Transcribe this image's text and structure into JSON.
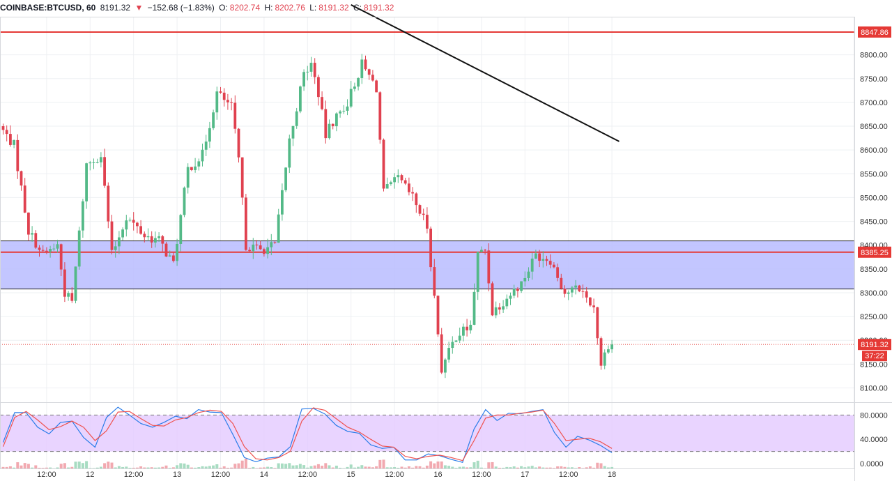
{
  "header": {
    "symbol": "COINBASE:BTCUSD, 60",
    "last": "8191.32",
    "change_arrow": "▼",
    "change": "−152.68 (−1.83%)",
    "open_label": "O:",
    "open": "8202.74",
    "high_label": "H:",
    "high": "8202.76",
    "low_label": "L:",
    "low": "8191.32",
    "close_label": "C:",
    "close": "8191.32"
  },
  "colors": {
    "up": "#53b987",
    "down": "#e0414f",
    "level_line": "#e53935",
    "zone_fill": "#b9bcff",
    "stoch_band": "#e4c9ff",
    "k_line": "#2b7de9",
    "d_line": "#ef5350",
    "grid": "#eef0f3"
  },
  "chart_data": [
    {
      "type": "candlestick",
      "pane": "price",
      "y_range": [
        8070,
        8880
      ],
      "y_ticks": [
        "8100.00",
        "8150.00",
        "8200.00",
        "8250.00",
        "8300.00",
        "8350.00",
        "8400.00",
        "8450.00",
        "8500.00",
        "8550.00",
        "8600.00",
        "8650.00",
        "8700.00",
        "8750.00",
        "8800.00"
      ],
      "y_tick_values": [
        8100,
        8150,
        8200,
        8250,
        8300,
        8350,
        8400,
        8450,
        8500,
        8550,
        8600,
        8650,
        8700,
        8750,
        8800
      ],
      "x_ticks": [
        "12:00",
        "12",
        "12:00",
        "13",
        "12:00",
        "14",
        "12:00",
        "15",
        "12:00",
        "16",
        "12:00",
        "17",
        "12:00",
        "18"
      ],
      "bars_per_day": 24,
      "first_tick_bar": 12,
      "bar_count": 188,
      "anchors": [
        [
          0,
          8650
        ],
        [
          4,
          8610
        ],
        [
          8,
          8430
        ],
        [
          12,
          8380
        ],
        [
          16,
          8400
        ],
        [
          18,
          8300
        ],
        [
          20,
          8280
        ],
        [
          24,
          8570
        ],
        [
          28,
          8590
        ],
        [
          31,
          8380
        ],
        [
          35,
          8460
        ],
        [
          40,
          8420
        ],
        [
          44,
          8410
        ],
        [
          48,
          8360
        ],
        [
          52,
          8560
        ],
        [
          56,
          8590
        ],
        [
          60,
          8720
        ],
        [
          64,
          8690
        ],
        [
          66,
          8580
        ],
        [
          68,
          8400
        ],
        [
          72,
          8390
        ],
        [
          76,
          8400
        ],
        [
          80,
          8620
        ],
        [
          84,
          8760
        ],
        [
          86,
          8780
        ],
        [
          88,
          8720
        ],
        [
          90,
          8630
        ],
        [
          92,
          8660
        ],
        [
          96,
          8700
        ],
        [
          100,
          8780
        ],
        [
          104,
          8730
        ],
        [
          106,
          8510
        ],
        [
          110,
          8540
        ],
        [
          114,
          8500
        ],
        [
          118,
          8440
        ],
        [
          120,
          8290
        ],
        [
          122,
          8140
        ],
        [
          126,
          8210
        ],
        [
          130,
          8230
        ],
        [
          132,
          8380
        ],
        [
          134,
          8390
        ],
        [
          136,
          8260
        ],
        [
          140,
          8290
        ],
        [
          144,
          8320
        ],
        [
          148,
          8380
        ],
        [
          152,
          8370
        ],
        [
          156,
          8300
        ],
        [
          160,
          8310
        ],
        [
          164,
          8270
        ],
        [
          166,
          8150
        ],
        [
          168,
          8192
        ]
      ],
      "support_zone": [
        8308,
        8409
      ],
      "levels": [
        8847.86,
        8385.25
      ],
      "level_labels": [
        "8847.86",
        "8385.25"
      ],
      "last_price": 8191.32,
      "last_price_label": "8191.32",
      "countdown": "37:22",
      "trendline": [
        [
          96,
          8905
        ],
        [
          170,
          8618
        ]
      ]
    },
    {
      "type": "line",
      "pane": "stochastic",
      "y_range": [
        -8,
        100
      ],
      "y_ticks": [
        "80.0000",
        "40.0000",
        "0.0000"
      ],
      "y_tick_values": [
        80,
        40,
        0
      ],
      "band": [
        20,
        80
      ],
      "series": [
        {
          "key": "k",
          "values": [
            35,
            84,
            84,
            60,
            49,
            68,
            70,
            43,
            27,
            76,
            93,
            80,
            66,
            60,
            68,
            78,
            74,
            89,
            85,
            84,
            48,
            10,
            3,
            9,
            11,
            28,
            90,
            91,
            82,
            63,
            53,
            50,
            31,
            25,
            27,
            6,
            6,
            16,
            13,
            7,
            2,
            57,
            89,
            71,
            83,
            82,
            86,
            89,
            51,
            27,
            45,
            39,
            30,
            18
          ]
        },
        {
          "key": "d",
          "values": [
            28,
            76,
            86,
            72,
            56,
            61,
            70,
            60,
            38,
            54,
            85,
            86,
            74,
            63,
            62,
            72,
            76,
            84,
            88,
            86,
            66,
            28,
            8,
            6,
            10,
            20,
            70,
            92,
            88,
            74,
            60,
            52,
            40,
            29,
            27,
            12,
            8,
            12,
            14,
            10,
            5,
            38,
            75,
            80,
            80,
            83,
            85,
            88,
            66,
            38,
            40,
            42,
            36,
            25
          ]
        }
      ],
      "volume_histogram": true
    }
  ]
}
